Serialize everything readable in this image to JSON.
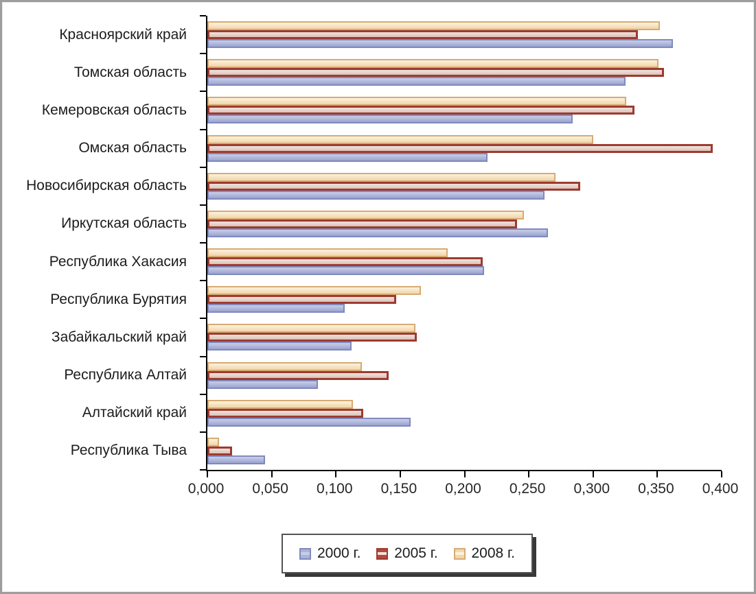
{
  "chart_data": {
    "type": "bar",
    "orientation": "horizontal",
    "title": "",
    "xlabel": "",
    "ylabel": "",
    "xlim": [
      0,
      0.4
    ],
    "x_ticks": [
      "0,000",
      "0,050",
      "0,100",
      "0,150",
      "0,200",
      "0,250",
      "0,300",
      "0,350",
      "0,400"
    ],
    "grid": false,
    "legend_position": "bottom",
    "bar_order_top_to_bottom": [
      "2008 г.",
      "2005 г.",
      "2000 г."
    ],
    "categories": [
      "Красноярский край",
      "Томская область",
      "Кемеровская область",
      "Омская область",
      "Новосибирская область",
      "Иркутская область",
      "Республика Хакасия",
      "Республика Бурятия",
      "Забайкальский край",
      "Республика Алтай",
      "Алтайский край",
      "Республика Тыва"
    ],
    "series": [
      {
        "name": "2000 г.",
        "key": "s-2000",
        "values": [
          0.362,
          0.325,
          0.284,
          0.218,
          0.262,
          0.265,
          0.215,
          0.107,
          0.112,
          0.086,
          0.158,
          0.045
        ],
        "fill_light": "#c9cee8",
        "fill_dark": "#99a4cf",
        "border": "#8089bd",
        "swatch_fill": "#aab4d8"
      },
      {
        "name": "2005 г.",
        "key": "s-2005",
        "values": [
          0.335,
          0.355,
          0.332,
          0.393,
          0.29,
          0.241,
          0.214,
          0.147,
          0.163,
          0.141,
          0.121,
          0.019
        ],
        "fill_light": "#efe3dd",
        "fill_dark": "#dcc3b9",
        "border": "#9d3b30",
        "swatch_fill": "#b6473c"
      },
      {
        "name": "2008 г.",
        "key": "s-2008",
        "values": [
          0.352,
          0.351,
          0.326,
          0.3,
          0.271,
          0.246,
          0.187,
          0.166,
          0.162,
          0.12,
          0.113,
          0.009
        ],
        "fill_light": "#fcf2e0",
        "fill_dark": "#f1d5a8",
        "border": "#d7aa72",
        "swatch_fill": "#f2d8ac"
      }
    ]
  },
  "frame": {
    "border_color": "#9d9d9d",
    "background": "#ffffff",
    "axis_color": "#000000"
  }
}
